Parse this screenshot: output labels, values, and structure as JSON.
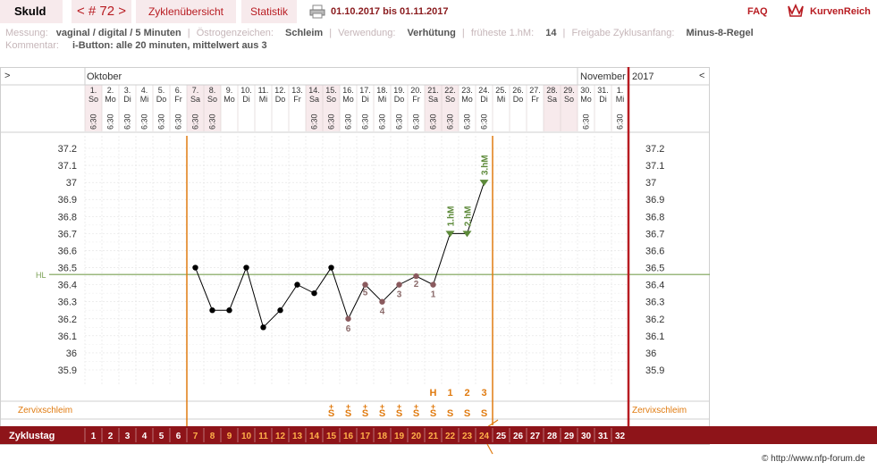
{
  "header": {
    "title": "Skuld",
    "cycle_nav": "< # 72 >",
    "tab_overview": "Zyklenübersicht",
    "tab_statistics": "Statistik",
    "date_range": "01.10.2017 bis 01.11.2017",
    "faq": "FAQ",
    "brand": "KurvenReich"
  },
  "meta": {
    "messung_label": "Messung:",
    "messung_value": "vaginal / digital / 5 Minuten",
    "oestrogen_label": "Östrogenzeichen:",
    "oestrogen_value": "Schleim",
    "verwendung_label": "Verwendung:",
    "verwendung_value": "Verhütung",
    "frueheste_label": "früheste 1.hM:",
    "frueheste_value": "14",
    "freigabe_label": "Freigabe Zyklusanfang:",
    "freigabe_value": "Minus-8-Regel",
    "kommentar_label": "Kommentar:",
    "kommentar_value": "i-Button: alle 20 minuten, mittelwert aus 3"
  },
  "chart_data": {
    "type": "line",
    "month_left": "Oktober",
    "month_right": "November",
    "year": "2017",
    "nav_left": ">",
    "nav_right": "<",
    "days": [
      {
        "d": "1.",
        "w": "So",
        "t": "6:30",
        "we": true
      },
      {
        "d": "2.",
        "w": "Mo",
        "t": "6:30",
        "we": false
      },
      {
        "d": "3.",
        "w": "Di",
        "t": "6:30",
        "we": false
      },
      {
        "d": "4.",
        "w": "Mi",
        "t": "6:30",
        "we": false
      },
      {
        "d": "5.",
        "w": "Do",
        "t": "6:30",
        "we": false
      },
      {
        "d": "6.",
        "w": "Fr",
        "t": "6:30",
        "we": false
      },
      {
        "d": "7.",
        "w": "Sa",
        "t": "6:30",
        "we": true
      },
      {
        "d": "8.",
        "w": "So",
        "t": "6:30",
        "we": true
      },
      {
        "d": "9.",
        "w": "Mo",
        "t": "",
        "we": false
      },
      {
        "d": "10.",
        "w": "Di",
        "t": "",
        "we": false
      },
      {
        "d": "11.",
        "w": "Mi",
        "t": "",
        "we": false
      },
      {
        "d": "12.",
        "w": "Do",
        "t": "",
        "we": false
      },
      {
        "d": "13.",
        "w": "Fr",
        "t": "",
        "we": false
      },
      {
        "d": "14.",
        "w": "Sa",
        "t": "6:30",
        "we": true
      },
      {
        "d": "15.",
        "w": "So",
        "t": "6:30",
        "we": true
      },
      {
        "d": "16.",
        "w": "Mo",
        "t": "6:30",
        "we": false
      },
      {
        "d": "17.",
        "w": "Di",
        "t": "6:30",
        "we": false
      },
      {
        "d": "18.",
        "w": "Mi",
        "t": "6:30",
        "we": false
      },
      {
        "d": "19.",
        "w": "Do",
        "t": "6:30",
        "we": false
      },
      {
        "d": "20.",
        "w": "Fr",
        "t": "6:30",
        "we": false
      },
      {
        "d": "21.",
        "w": "Sa",
        "t": "6:30",
        "we": true
      },
      {
        "d": "22.",
        "w": "So",
        "t": "6:30",
        "we": true
      },
      {
        "d": "23.",
        "w": "Mo",
        "t": "6:30",
        "we": false
      },
      {
        "d": "24.",
        "w": "Di",
        "t": "6:30",
        "we": false
      },
      {
        "d": "25.",
        "w": "Mi",
        "t": "",
        "we": false
      },
      {
        "d": "26.",
        "w": "Do",
        "t": "",
        "we": false
      },
      {
        "d": "27.",
        "w": "Fr",
        "t": "",
        "we": false
      },
      {
        "d": "28.",
        "w": "Sa",
        "t": "",
        "we": true
      },
      {
        "d": "29.",
        "w": "So",
        "t": "",
        "we": true
      },
      {
        "d": "30.",
        "w": "Mo",
        "t": "6:30",
        "we": false
      },
      {
        "d": "31.",
        "w": "Di",
        "t": "",
        "we": false
      },
      {
        "d": "1.",
        "w": "Mi",
        "t": "6:30",
        "we": false
      }
    ],
    "y_ticks": [
      37.2,
      37.1,
      37,
      36.9,
      36.8,
      36.7,
      36.6,
      36.5,
      36.4,
      36.3,
      36.2,
      36.1,
      36,
      35.9
    ],
    "ylim": [
      35.85,
      37.25
    ],
    "hl_label": "HL",
    "hl_value": 36.46,
    "temps": [
      {
        "cd": 7,
        "v": 36.5
      },
      {
        "cd": 8,
        "v": 36.25
      },
      {
        "cd": 9,
        "v": 36.25
      },
      {
        "cd": 10,
        "v": 36.5
      },
      {
        "cd": 11,
        "v": 36.15
      },
      {
        "cd": 12,
        "v": 36.25
      },
      {
        "cd": 13,
        "v": 36.4
      },
      {
        "cd": 14,
        "v": 36.35
      },
      {
        "cd": 15,
        "v": 36.5
      },
      {
        "cd": 16,
        "v": 36.2,
        "lbl": "6"
      },
      {
        "cd": 17,
        "v": 36.4,
        "lbl": "5"
      },
      {
        "cd": 18,
        "v": 36.3,
        "lbl": "4"
      },
      {
        "cd": 19,
        "v": 36.4,
        "lbl": "3"
      },
      {
        "cd": 20,
        "v": 36.45,
        "lbl": "2"
      },
      {
        "cd": 21,
        "v": 36.4,
        "lbl": "1"
      },
      {
        "cd": 22,
        "v": 36.7,
        "hm": "1.hM"
      },
      {
        "cd": 23,
        "v": 36.7,
        "hm": "2.hM"
      },
      {
        "cd": 24,
        "v": 37,
        "hm": "3.hM"
      }
    ],
    "cervical_label": "Zervixschleim",
    "cervical_marks": [
      {
        "cd": 15,
        "s": "S",
        "plus": true
      },
      {
        "cd": 16,
        "s": "S",
        "plus": true
      },
      {
        "cd": 17,
        "s": "S",
        "plus": true
      },
      {
        "cd": 18,
        "s": "S",
        "plus": true
      },
      {
        "cd": 19,
        "s": "S",
        "plus": true
      },
      {
        "cd": 20,
        "s": "S",
        "plus": true
      },
      {
        "cd": 21,
        "s": "S",
        "plus": true,
        "top": "H"
      },
      {
        "cd": 22,
        "s": "S",
        "plus": false,
        "top": "1"
      },
      {
        "cd": 23,
        "s": "S",
        "plus": false,
        "top": "2"
      },
      {
        "cd": 24,
        "s": "S",
        "plus": false,
        "top": "3"
      }
    ],
    "cycle_label": "Zyklustag",
    "cycle_days": [
      1,
      2,
      3,
      4,
      5,
      6,
      7,
      8,
      9,
      10,
      11,
      12,
      13,
      14,
      15,
      16,
      17,
      18,
      19,
      20,
      21,
      22,
      23,
      24,
      25,
      26,
      27,
      28,
      29,
      30,
      31,
      32
    ],
    "infertile_start_cd": 6,
    "infertile_end_cd": 24,
    "colors": {
      "accent": "#b81c22",
      "line": "#e07b10",
      "hl": "#7aa054",
      "grey_text": "#8a6a6a",
      "hm": "#5d8a3a",
      "weekend": "#f7eaec"
    }
  },
  "footer": {
    "copyright": "© http://www.nfp-forum.de"
  }
}
